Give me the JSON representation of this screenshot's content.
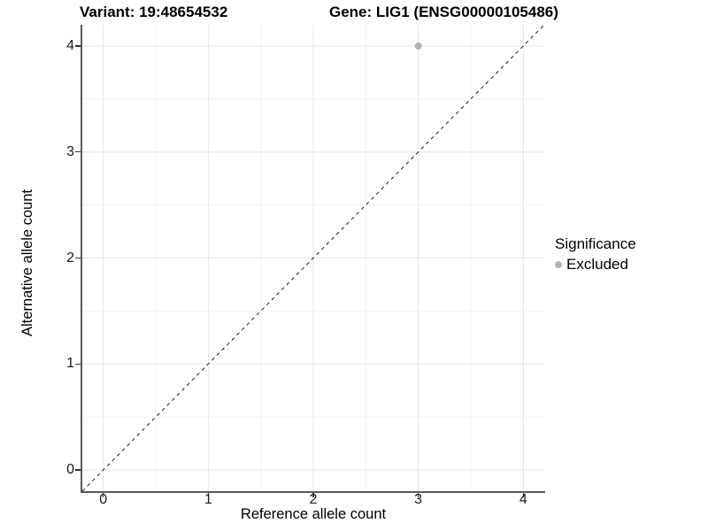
{
  "titles": {
    "variant": "Variant: 19:48654532",
    "gene": "Gene: LIG1 (ENSG00000105486)"
  },
  "axes": {
    "x_label": "Reference allele count",
    "y_label": "Alternative allele count"
  },
  "legend": {
    "title": "Significance",
    "items": [
      {
        "label": "Excluded",
        "color": "#b3b3b3"
      }
    ]
  },
  "colors": {
    "background": "#ffffff",
    "grid_major": "#e4e4e4",
    "grid_minor": "#f1f1f1",
    "axis_line": "#5a5a5a",
    "tick_mark": "#333333",
    "reference_line": "#1a1a1a",
    "point": "#b3b3b3"
  },
  "chart_data": {
    "type": "scatter",
    "title": "Variant: 19:48654532   Gene: LIG1 (ENSG00000105486)",
    "xlabel": "Reference allele count",
    "ylabel": "Alternative allele count",
    "xlim": [
      -0.2,
      4.2
    ],
    "ylim": [
      -0.2,
      4.2
    ],
    "x_ticks": [
      0,
      1,
      2,
      3,
      4
    ],
    "y_ticks": [
      0,
      1,
      2,
      3,
      4
    ],
    "x_minor_ticks": [
      0.5,
      1.5,
      2.5,
      3.5
    ],
    "y_minor_ticks": [
      0.5,
      1.5,
      2.5,
      3.5
    ],
    "grid": true,
    "legend_position": "right",
    "series": [
      {
        "name": "Excluded",
        "color": "#b3b3b3",
        "point_radius": 4,
        "points": [
          {
            "x": 3,
            "y": 4
          }
        ]
      }
    ],
    "reference_line": {
      "type": "identity-diagonal",
      "style": "dashed",
      "color": "#1a1a1a",
      "dash": [
        4,
        4
      ]
    }
  }
}
